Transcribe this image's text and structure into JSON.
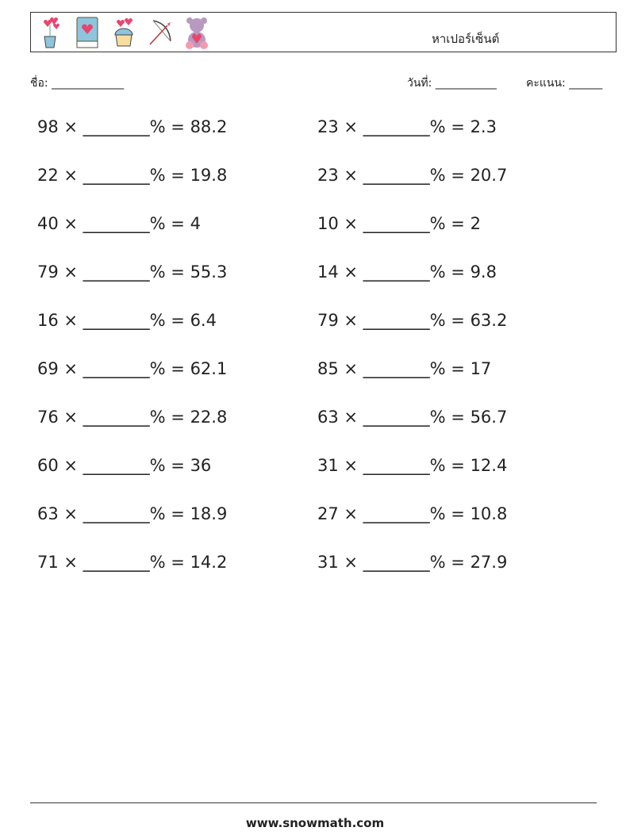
{
  "header": {
    "title": "หาเปอร์เซ็นต์",
    "icons": [
      "flower-pot-icon",
      "heart-book-icon",
      "cupcake-icon",
      "bow-arrow-icon",
      "teddy-bear-icon"
    ]
  },
  "meta": {
    "name_label": "ชื่อ: _____________",
    "date_label": "วันที่: ___________",
    "score_label": "คะแนน: ______"
  },
  "problems": [
    "98 × ________% = 88.2",
    "23 × ________% = 2.3",
    "22 × ________% = 19.8",
    "23 × ________% = 20.7",
    "40 × ________% = 4",
    "10 × ________% = 2",
    "79 × ________% = 55.3",
    "14 × ________% = 9.8",
    "16 × ________% = 6.4",
    "79 × ________% = 63.2",
    "69 × ________% = 62.1",
    "85 × ________% = 17",
    "76 × ________% = 22.8",
    "63 × ________% = 56.7",
    "60 × ________% = 36",
    "31 × ________% = 12.4",
    "63 × ________% = 18.9",
    "27 × ________% = 10.8",
    "71 × ________% = 14.2",
    "31 × ________% = 27.9"
  ],
  "footer": "www.snowmath.com"
}
